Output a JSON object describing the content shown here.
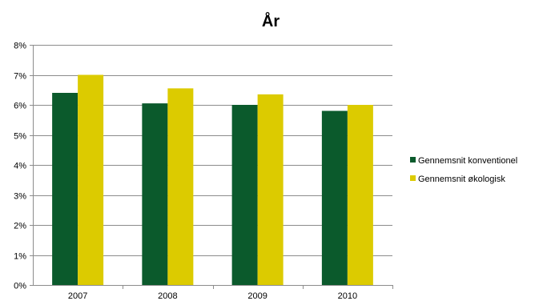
{
  "chart_data": {
    "type": "bar",
    "title": "År",
    "xlabel": "",
    "ylabel": "",
    "categories": [
      "2007",
      "2008",
      "2009",
      "2010"
    ],
    "series": [
      {
        "name": "Gennemsnit konventionel",
        "values": [
          6.4,
          6.05,
          6.0,
          5.8
        ],
        "color": "#0b5a2c"
      },
      {
        "name": "Gennemsnit økologisk",
        "values": [
          7.0,
          6.55,
          6.35,
          6.0
        ],
        "color": "#dccb00"
      }
    ],
    "ylim": [
      0,
      8
    ],
    "y_ticks": [
      "0%",
      "1%",
      "2%",
      "3%",
      "4%",
      "5%",
      "6%",
      "7%",
      "8%"
    ],
    "grid": true,
    "legend_position": "right"
  }
}
